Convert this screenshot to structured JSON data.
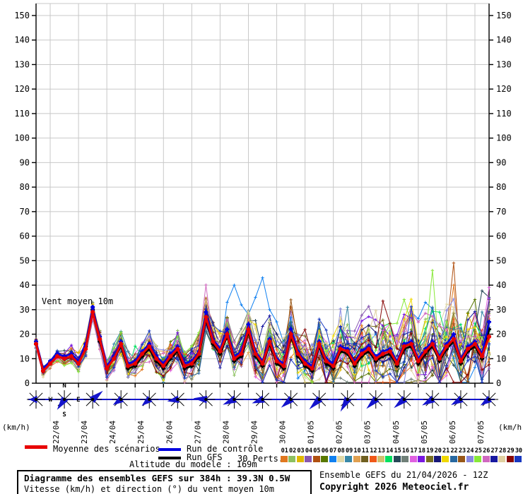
{
  "ui": {
    "unit_left": "(km/h)",
    "unit_right": "(km/h)",
    "annotation": "Vent moyen 10m",
    "legend": {
      "mean_label": "Moyenne des scénarios",
      "control_label": "Run de contrôle",
      "gfs_label": "Run GFS",
      "perts_label": "30 Perts."
    },
    "altitude_note": "Altitude du modele : 169m",
    "info_box": {
      "title": "Diagramme des ensembles GEFS sur 384h : 39.3N 0.5W",
      "subtitle": "Vitesse (km/h) et direction (°) du vent moyen 10m"
    },
    "run_info": "Ensemble GEFS du 21/04/2026 - 12Z",
    "copyright": "Copyright 2026 Meteociel.fr",
    "compass": {
      "n": "N",
      "e": "E",
      "s": "S",
      "w": "W"
    }
  },
  "chart_data": {
    "type": "line",
    "title": "Diagramme des ensembles GEFS sur 384h : 39.3N 0.5W",
    "subtitle": "Vitesse (km/h) et direction (°) du vent moyen 10m",
    "ylabel": "(km/h)",
    "ylim": [
      0,
      155
    ],
    "ytick_step": 10,
    "ytick_label_max": 150,
    "grid": true,
    "x_start": "21/04 12Z",
    "x_end": "07/05 12Z",
    "hours_total": 384,
    "hours_step": 6,
    "date_labels": [
      "22/04",
      "23/04",
      "24/04",
      "25/04",
      "26/04",
      "27/04",
      "28/04",
      "29/04",
      "30/04",
      "01/05",
      "02/05",
      "03/05",
      "04/05",
      "05/05",
      "06/05",
      "07/05"
    ],
    "series": {
      "mean": {
        "name": "Moyenne des scénarios",
        "color": "#E80000",
        "values": [
          16,
          5,
          8,
          11,
          10,
          11,
          8,
          14,
          29,
          18,
          6,
          10,
          16,
          7,
          8,
          12,
          15,
          10,
          7,
          11,
          14,
          7,
          8,
          12,
          27,
          17,
          13,
          20,
          10,
          12,
          22,
          12,
          8,
          17,
          9,
          7,
          20,
          12,
          8,
          6,
          16,
          9,
          7,
          14,
          13,
          8,
          12,
          14,
          10,
          12,
          13,
          8,
          15,
          16,
          9,
          13,
          16,
          10,
          15,
          18,
          9,
          14,
          16,
          11,
          19
        ]
      },
      "control": {
        "name": "Run de contrôle",
        "color": "#0000E0",
        "values": [
          17,
          6,
          9,
          12,
          11,
          12,
          9,
          16,
          31,
          19,
          7,
          11,
          17,
          8,
          9,
          13,
          16,
          11,
          8,
          12,
          15,
          8,
          9,
          13,
          29,
          18,
          14,
          22,
          11,
          13,
          24,
          13,
          9,
          18,
          10,
          8,
          22,
          13,
          9,
          7,
          17,
          10,
          8,
          15,
          14,
          9,
          13,
          15,
          11,
          13,
          14,
          9,
          16,
          17,
          10,
          14,
          17,
          11,
          16,
          20,
          10,
          15,
          17,
          12,
          25
        ]
      },
      "gfs": {
        "name": "Run GFS",
        "color": "#000000",
        "values": [
          16,
          5,
          8,
          11,
          10,
          11,
          8,
          15,
          30,
          17,
          6,
          10,
          15,
          6,
          7,
          11,
          14,
          9,
          6,
          10,
          13,
          6,
          7,
          11,
          26,
          16,
          12,
          19,
          9,
          11,
          21,
          11,
          7,
          16,
          8,
          6,
          19,
          11,
          7,
          5,
          15,
          8,
          6,
          13,
          12,
          7,
          11,
          13,
          9,
          11,
          12,
          7,
          14,
          15,
          8,
          12,
          15,
          9,
          14,
          17,
          8,
          13,
          15,
          10,
          22
        ]
      },
      "members": {
        "count": 30,
        "spread_start": 1.5,
        "spread_end": 13.5,
        "spikes": [
          {
            "m": 7,
            "i": 27,
            "v": 33
          },
          {
            "m": 7,
            "i": 28,
            "v": 40
          },
          {
            "m": 7,
            "i": 29,
            "v": 32
          },
          {
            "m": 7,
            "i": 30,
            "v": 28
          },
          {
            "m": 7,
            "i": 31,
            "v": 35
          },
          {
            "m": 7,
            "i": 32,
            "v": 43
          },
          {
            "m": 7,
            "i": 33,
            "v": 30
          },
          {
            "m": 7,
            "i": 34,
            "v": 25
          },
          {
            "m": 2,
            "i": 8,
            "v": 33
          },
          {
            "m": 23,
            "i": 36,
            "v": 34
          },
          {
            "m": 9,
            "i": 44,
            "v": 31
          },
          {
            "m": 25,
            "i": 56,
            "v": 46
          },
          {
            "m": 5,
            "i": 59,
            "v": 49
          },
          {
            "m": 1,
            "i": 59,
            "v": 40
          },
          {
            "m": 17,
            "i": 64,
            "v": 39
          }
        ]
      }
    },
    "pert_labels": [
      "01",
      "02",
      "03",
      "04",
      "05",
      "06",
      "07",
      "08",
      "09",
      "10",
      "11",
      "12",
      "13",
      "14",
      "15",
      "16",
      "17",
      "18",
      "19",
      "20",
      "21",
      "22",
      "23",
      "24",
      "25",
      "26",
      "27",
      "28",
      "29",
      "30"
    ],
    "pert_colors": [
      "#E07820",
      "#8CC060",
      "#E0B800",
      "#8858B0",
      "#B05010",
      "#587800",
      "#1080F0",
      "#E0D8A8",
      "#3888A8",
      "#E0A050",
      "#706020",
      "#F05818",
      "#D0C070",
      "#00E060",
      "#284858",
      "#708078",
      "#E060E0",
      "#7818E0",
      "#787020",
      "#181878",
      "#F0D800",
      "#2868A0",
      "#985818",
      "#8888E0",
      "#88E838",
      "#D068C0",
      "#1818A0",
      "#E0D0A0",
      "#880808",
      "#1838C0"
    ],
    "wind_color": "#1414CC",
    "wind_directions_deg": [
      180,
      125,
      320,
      145,
      140,
      170,
      185,
      155,
      160,
      140,
      135,
      120,
      135,
      140,
      150,
      150,
      145
    ],
    "wind_arrow_lengths": [
      10,
      18,
      19,
      14,
      14,
      15,
      18,
      18,
      16,
      18,
      20,
      20,
      19,
      19,
      17,
      16,
      15
    ]
  }
}
